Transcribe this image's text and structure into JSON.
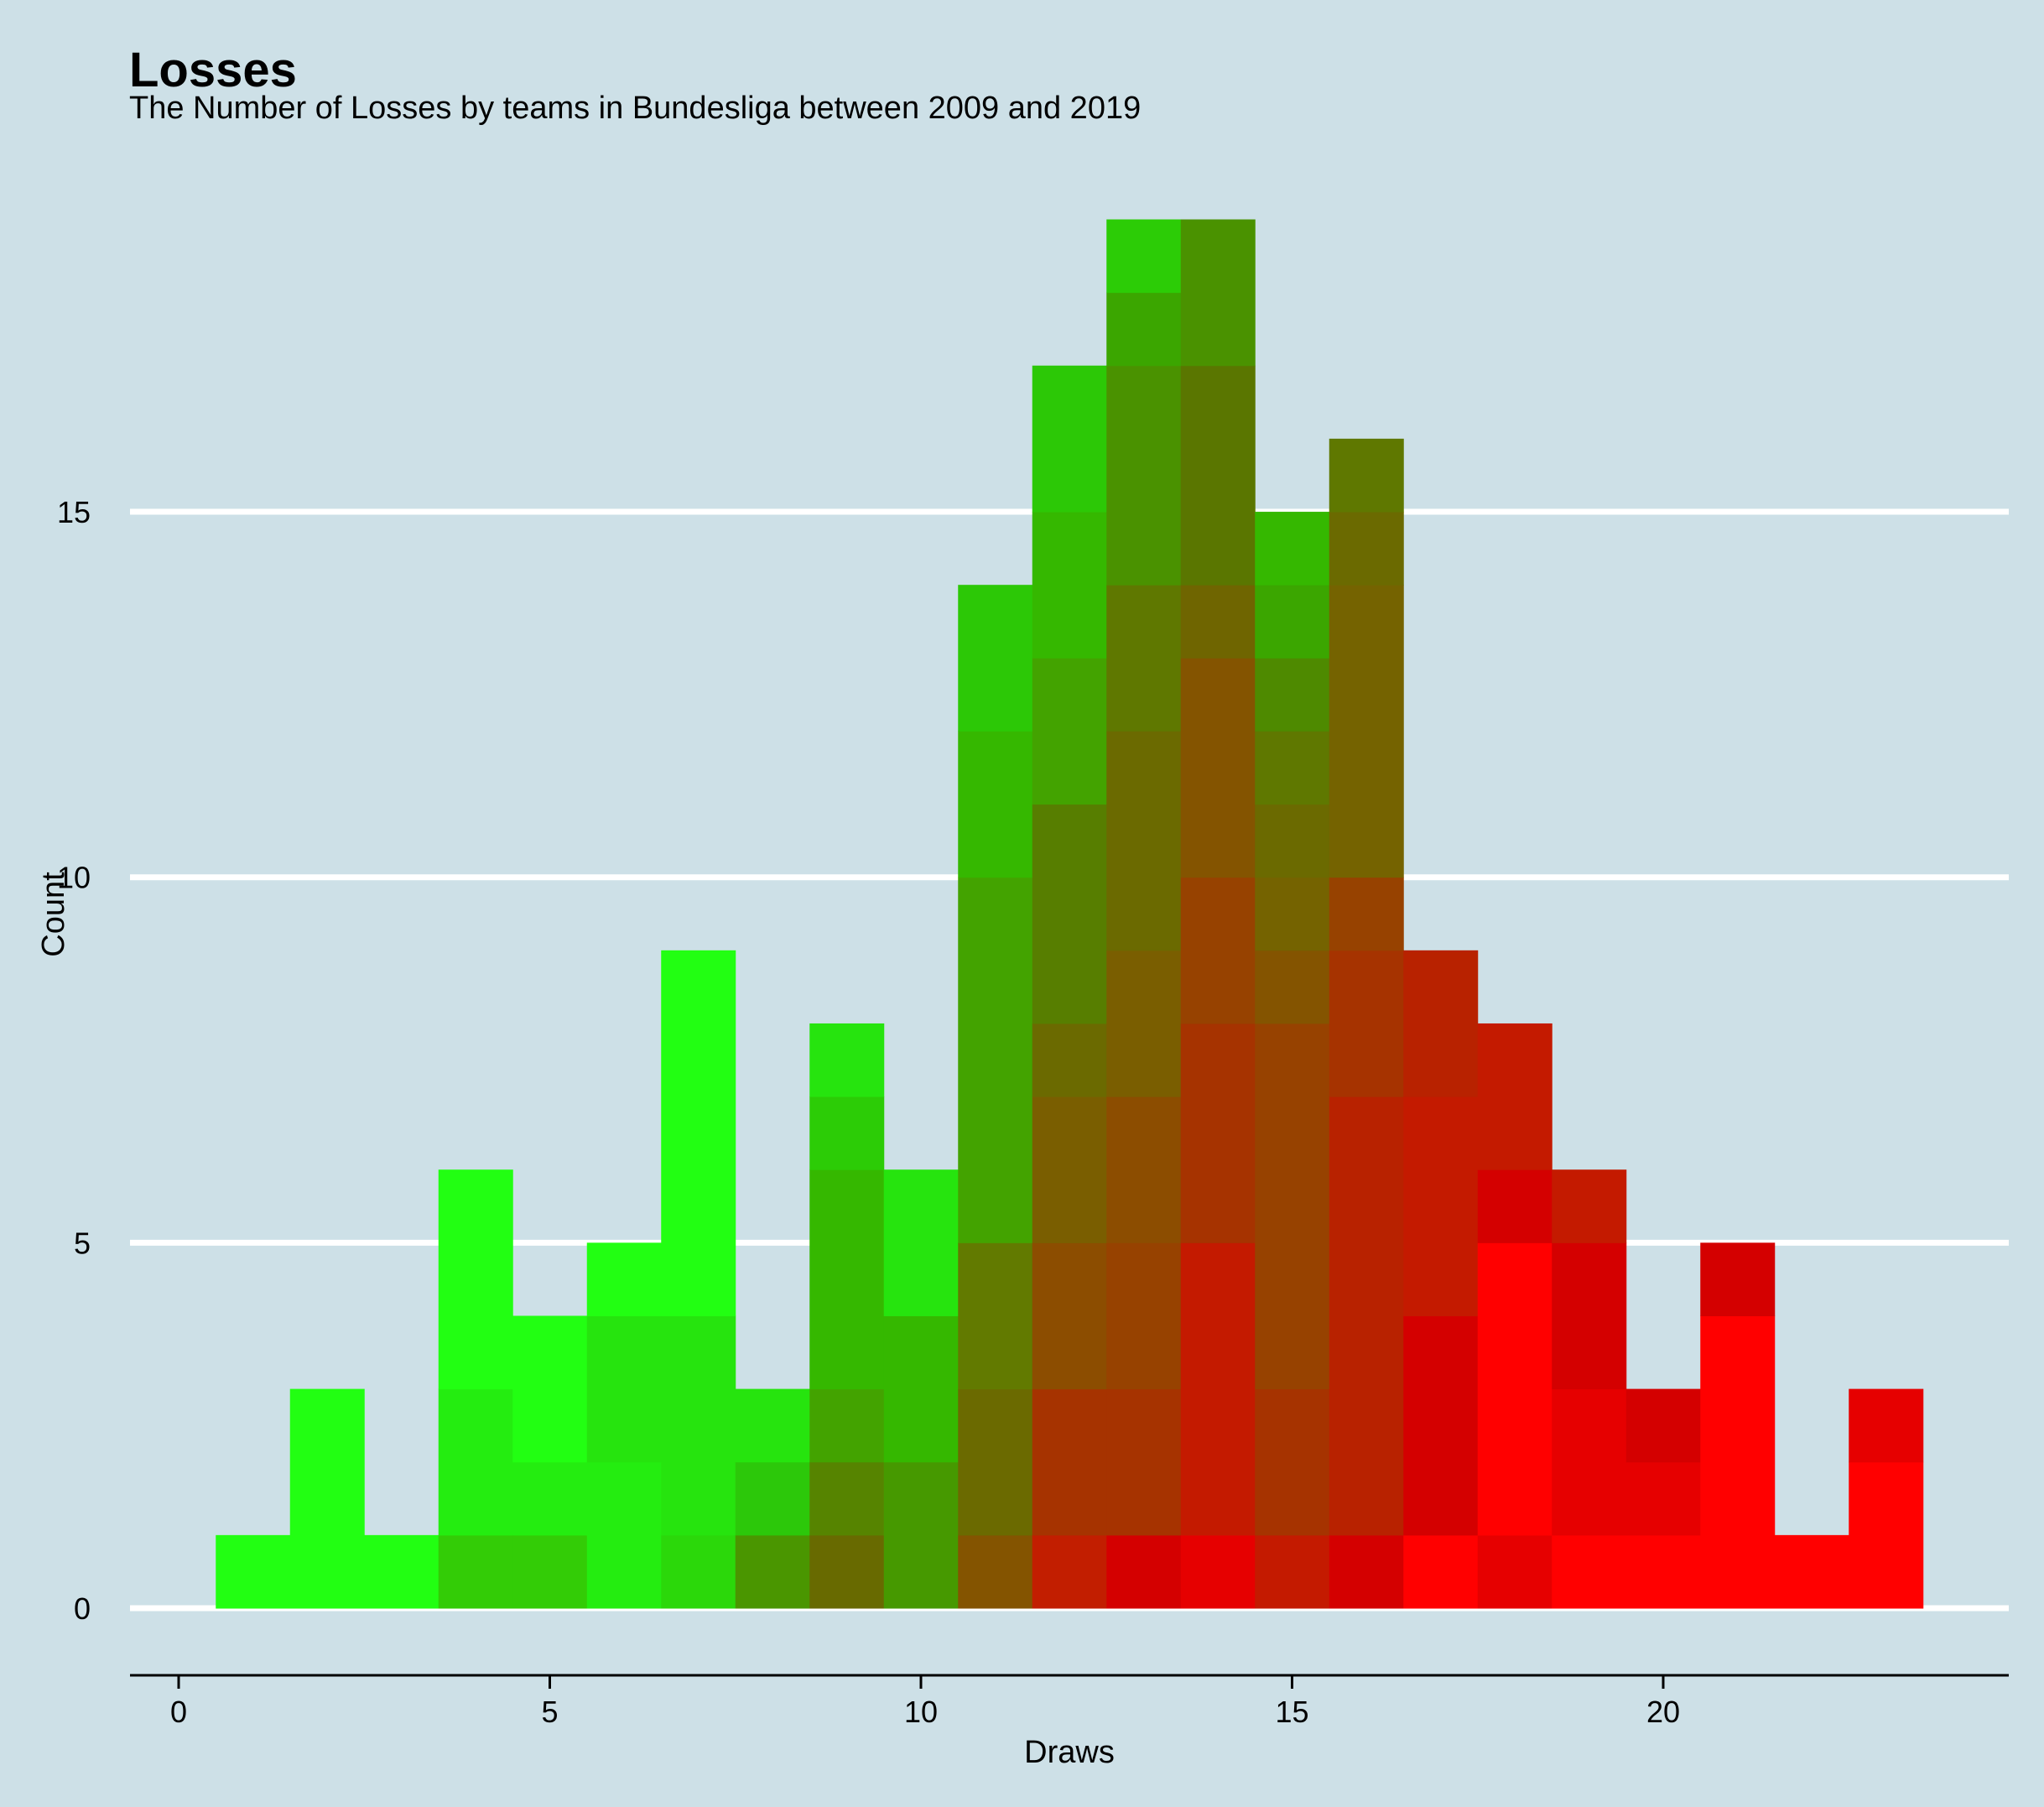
{
  "chart_data": {
    "type": "bar",
    "subtype": "stacked-histogram",
    "title": "Losses",
    "subtitle": "The Number of Losses by teams in Bundesliga between 2009 and 2019",
    "xlabel": "Draws",
    "ylabel": "Count",
    "xlim": [
      -0.6,
      24.6
    ],
    "ylim": [
      -0.9,
      19.2
    ],
    "x_ticks": [
      0,
      5,
      10,
      15,
      20
    ],
    "y_ticks": [
      0,
      5,
      10,
      15
    ],
    "grid": "horizontal major lines",
    "legend": "none",
    "bin_width": 1,
    "bins": [
      {
        "x": 1,
        "segments": [
          {
            "count": 1,
            "color": "#22ff12"
          }
        ]
      },
      {
        "x": 2,
        "segments": [
          {
            "count": 3,
            "color": "#22ff12"
          }
        ]
      },
      {
        "x": 3,
        "segments": [
          {
            "count": 1,
            "color": "#22ff12"
          }
        ]
      },
      {
        "x": 4,
        "segments": [
          {
            "count": 1,
            "color": "#33cc06"
          },
          {
            "count": 2,
            "color": "#24ed10"
          },
          {
            "count": 3,
            "color": "#22ff12"
          }
        ]
      },
      {
        "x": 5,
        "segments": [
          {
            "count": 1,
            "color": "#33cc06"
          },
          {
            "count": 1,
            "color": "#24ed10"
          },
          {
            "count": 2,
            "color": "#22ff12"
          }
        ]
      },
      {
        "x": 6,
        "segments": [
          {
            "count": 2,
            "color": "#24ed10"
          },
          {
            "count": 2,
            "color": "#26e40e"
          },
          {
            "count": 1,
            "color": "#22ff12"
          }
        ]
      },
      {
        "x": 7,
        "segments": [
          {
            "count": 1,
            "color": "#2bd80a"
          },
          {
            "count": 3,
            "color": "#26e40e"
          },
          {
            "count": 5,
            "color": "#22ff12"
          }
        ]
      },
      {
        "x": 8,
        "segments": [
          {
            "count": 1,
            "color": "#4a9600"
          },
          {
            "count": 1,
            "color": "#2cc80a"
          },
          {
            "count": 1,
            "color": "#26e40e"
          }
        ]
      },
      {
        "x": 9,
        "segments": [
          {
            "count": 1,
            "color": "#686a00"
          },
          {
            "count": 1,
            "color": "#568400"
          },
          {
            "count": 1,
            "color": "#43a300"
          },
          {
            "count": 3,
            "color": "#35b800"
          },
          {
            "count": 1,
            "color": "#2ccc06"
          },
          {
            "count": 1,
            "color": "#26e40e"
          }
        ]
      },
      {
        "x": 10,
        "segments": [
          {
            "count": 2,
            "color": "#469900"
          },
          {
            "count": 2,
            "color": "#35b800"
          },
          {
            "count": 2,
            "color": "#26e40e"
          }
        ]
      },
      {
        "x": 11,
        "segments": [
          {
            "count": 1,
            "color": "#845400"
          },
          {
            "count": 2,
            "color": "#6b6a00"
          },
          {
            "count": 2,
            "color": "#627a00"
          },
          {
            "count": 5,
            "color": "#43a300"
          },
          {
            "count": 2,
            "color": "#35b800"
          },
          {
            "count": 2,
            "color": "#2cc806"
          }
        ]
      },
      {
        "x": 12,
        "segments": [
          {
            "count": 1,
            "color": "#c21e00"
          },
          {
            "count": 2,
            "color": "#a63300"
          },
          {
            "count": 2,
            "color": "#8c4d00"
          },
          {
            "count": 2,
            "color": "#7a5e00"
          },
          {
            "count": 1,
            "color": "#6b6a00"
          },
          {
            "count": 3,
            "color": "#577e00"
          },
          {
            "count": 2,
            "color": "#43a300"
          },
          {
            "count": 2,
            "color": "#35b800"
          },
          {
            "count": 2,
            "color": "#2cc806"
          }
        ]
      },
      {
        "x": 13,
        "segments": [
          {
            "count": 1,
            "color": "#d40000"
          },
          {
            "count": 2,
            "color": "#a63300"
          },
          {
            "count": 2,
            "color": "#974200"
          },
          {
            "count": 2,
            "color": "#8c4d00"
          },
          {
            "count": 2,
            "color": "#7a5e00"
          },
          {
            "count": 3,
            "color": "#6b6a00"
          },
          {
            "count": 2,
            "color": "#5f7800"
          },
          {
            "count": 3,
            "color": "#4a9200"
          },
          {
            "count": 1,
            "color": "#3ba600"
          },
          {
            "count": 1,
            "color": "#2ccc06"
          }
        ]
      },
      {
        "x": 14,
        "segments": [
          {
            "count": 1,
            "color": "#e60000"
          },
          {
            "count": 4,
            "color": "#c41a00"
          },
          {
            "count": 3,
            "color": "#a63300"
          },
          {
            "count": 2,
            "color": "#974200"
          },
          {
            "count": 3,
            "color": "#845400"
          },
          {
            "count": 1,
            "color": "#6f6500"
          },
          {
            "count": 3,
            "color": "#5a7600"
          },
          {
            "count": 2,
            "color": "#4a9200"
          }
        ]
      },
      {
        "x": 15,
        "segments": [
          {
            "count": 1,
            "color": "#c41a00"
          },
          {
            "count": 2,
            "color": "#a63300"
          },
          {
            "count": 5,
            "color": "#974200"
          },
          {
            "count": 1,
            "color": "#845400"
          },
          {
            "count": 1,
            "color": "#756300"
          },
          {
            "count": 1,
            "color": "#6b6a00"
          },
          {
            "count": 1,
            "color": "#5f7800"
          },
          {
            "count": 1,
            "color": "#4e8a00"
          },
          {
            "count": 1,
            "color": "#3ba600"
          },
          {
            "count": 1,
            "color": "#35b800"
          }
        ]
      },
      {
        "x": 16,
        "segments": [
          {
            "count": 1,
            "color": "#d40000"
          },
          {
            "count": 6,
            "color": "#b82200"
          },
          {
            "count": 2,
            "color": "#a63300"
          },
          {
            "count": 1,
            "color": "#974200"
          },
          {
            "count": 4,
            "color": "#756300"
          },
          {
            "count": 1,
            "color": "#6b6a00"
          },
          {
            "count": 1,
            "color": "#5f7800"
          }
        ]
      },
      {
        "x": 17,
        "segments": [
          {
            "count": 1,
            "color": "#ff0000"
          },
          {
            "count": 3,
            "color": "#d40000"
          },
          {
            "count": 3,
            "color": "#c41a00"
          },
          {
            "count": 2,
            "color": "#b82200"
          }
        ]
      },
      {
        "x": 18,
        "segments": [
          {
            "count": 1,
            "color": "#e60000"
          },
          {
            "count": 4,
            "color": "#ff0000"
          },
          {
            "count": 1,
            "color": "#d40000"
          },
          {
            "count": 2,
            "color": "#c41a00"
          }
        ]
      },
      {
        "x": 19,
        "segments": [
          {
            "count": 1,
            "color": "#ff0000"
          },
          {
            "count": 2,
            "color": "#e60000"
          },
          {
            "count": 2,
            "color": "#d40000"
          },
          {
            "count": 1,
            "color": "#c41a00"
          }
        ]
      },
      {
        "x": 20,
        "segments": [
          {
            "count": 1,
            "color": "#ff0000"
          },
          {
            "count": 1,
            "color": "#e60000"
          },
          {
            "count": 1,
            "color": "#d40000"
          }
        ]
      },
      {
        "x": 21,
        "segments": [
          {
            "count": 4,
            "color": "#ff0000"
          },
          {
            "count": 1,
            "color": "#d40000"
          }
        ]
      },
      {
        "x": 22,
        "segments": [
          {
            "count": 1,
            "color": "#ff0000"
          }
        ]
      },
      {
        "x": 23,
        "segments": [
          {
            "count": 2,
            "color": "#ff0000"
          },
          {
            "count": 1,
            "color": "#e60000"
          }
        ]
      }
    ],
    "colors": {
      "background": "#cde0e7",
      "grid": "#ffffff",
      "axis": "#000000"
    }
  }
}
